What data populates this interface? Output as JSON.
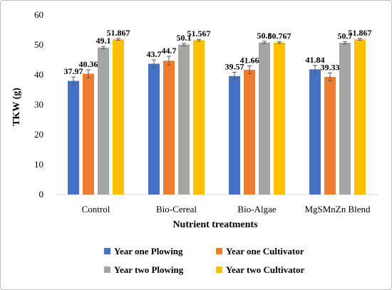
{
  "chart_data": {
    "type": "bar",
    "xlabel": "Nutrient treatments",
    "ylabel": "TKW (g)",
    "ylim": [
      0,
      60
    ],
    "yticks": [
      0,
      10,
      20,
      30,
      40,
      50,
      60
    ],
    "grid": false,
    "legend_position": "bottom",
    "categories": [
      "Control",
      "Bio-Cereal",
      "Bio-Algae",
      "MgSMnZn Blend"
    ],
    "series": [
      {
        "name": "Year one  Plowing",
        "color": "#4472C4",
        "values": [
          37.97,
          43.7,
          39.57,
          41.84
        ],
        "errors": [
          1.3,
          1.3,
          1.3,
          1.3
        ],
        "labels": [
          "37.97",
          "43.7",
          "39.57",
          "41.84"
        ]
      },
      {
        "name": "Year one  Cultivator",
        "color": "#ED7D31",
        "values": [
          40.36,
          44.7,
          41.66,
          39.33
        ],
        "errors": [
          1.3,
          1.5,
          1.3,
          1.3
        ],
        "labels": [
          "40.36",
          "44.7",
          "41.66",
          "39.33"
        ]
      },
      {
        "name": "Year two Plowing",
        "color": "#A5A5A5",
        "values": [
          49.1,
          50.1,
          50.8,
          50.7
        ],
        "errors": [
          0.4,
          0.4,
          0.4,
          0.4
        ],
        "labels": [
          "49.1",
          "50.1",
          "50.8",
          "50.7"
        ]
      },
      {
        "name": "Year two Cultivator",
        "color": "#FFC000",
        "values": [
          51.867,
          51.567,
          50.767,
          51.867
        ],
        "errors": [
          0.3,
          0.3,
          0.3,
          0.3
        ],
        "labels": [
          "51.867",
          "51.567",
          "50.767",
          "51.867"
        ]
      }
    ]
  }
}
